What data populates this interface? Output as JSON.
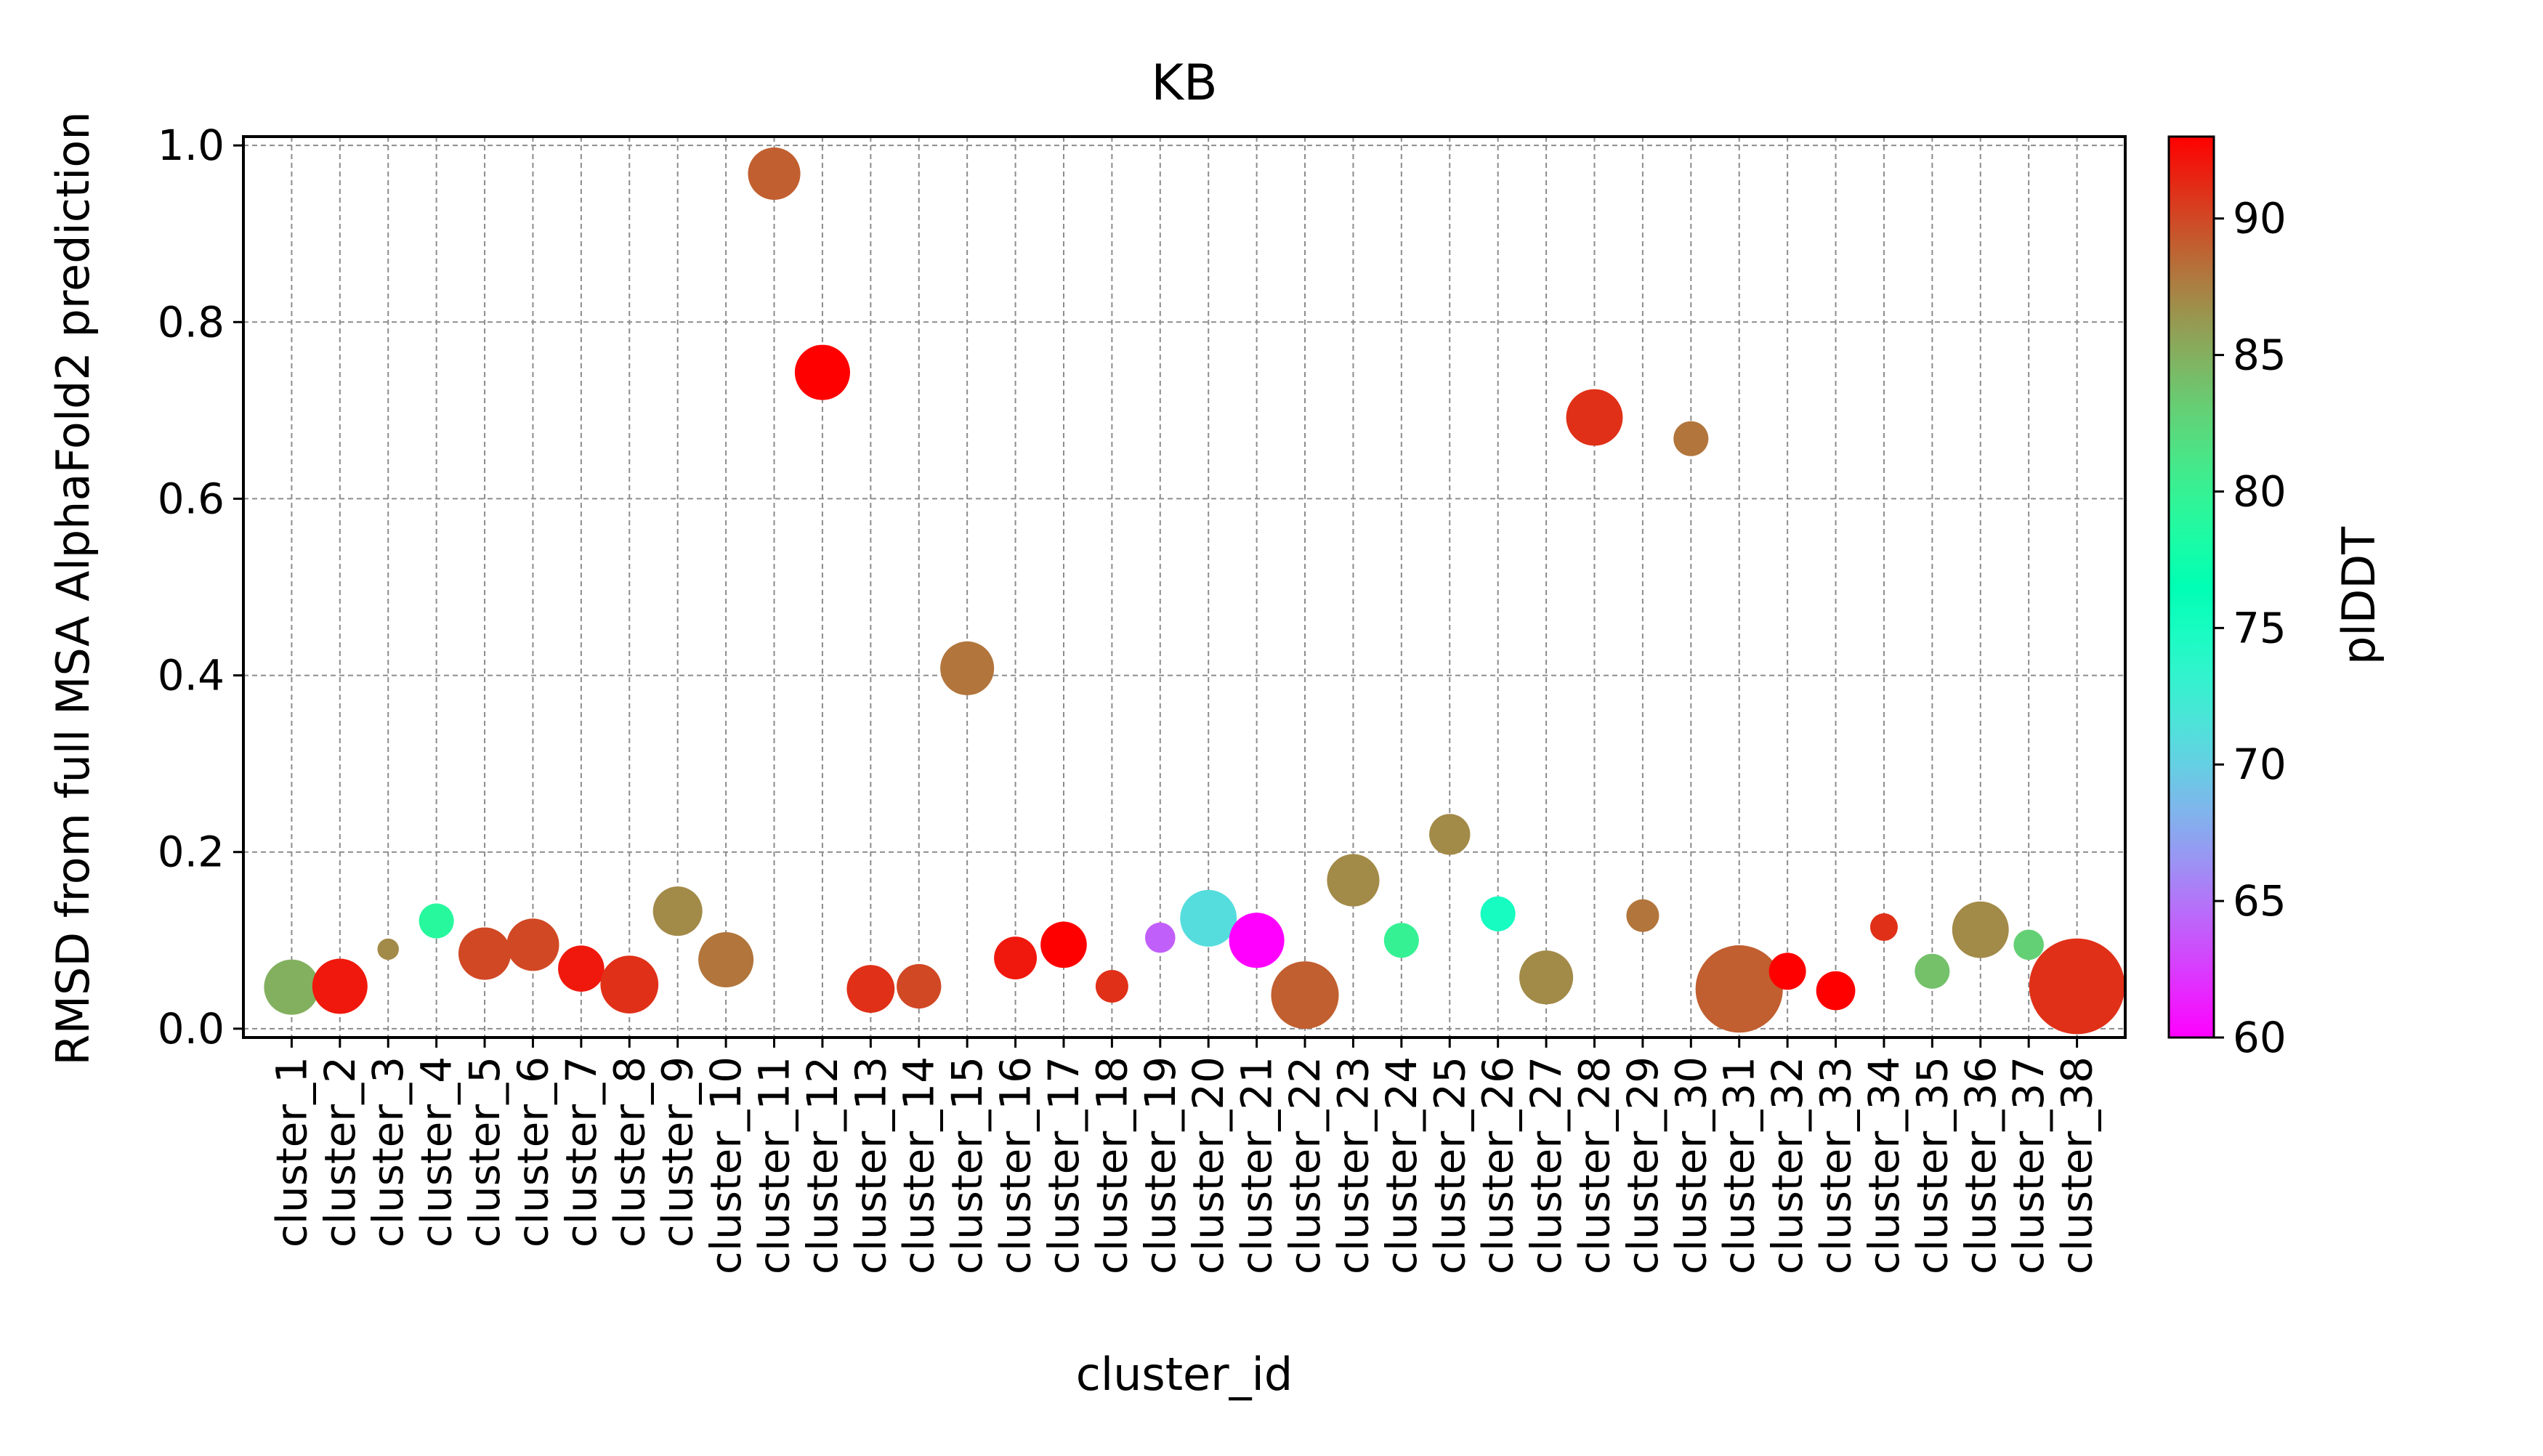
{
  "chart_data": {
    "type": "scatter",
    "title": "KB",
    "xlabel": "cluster_id",
    "ylabel": "RMSD from full MSA AlphaFold2 prediction",
    "colorbar_label": "plDDT",
    "colormap": "rainbow",
    "color_range": [
      60,
      93
    ],
    "colorbar_ticks": [
      "60",
      "65",
      "70",
      "75",
      "80",
      "85",
      "90"
    ],
    "ylim": [
      -0.01,
      1.01
    ],
    "yticks": [
      "0.0",
      "0.2",
      "0.4",
      "0.6",
      "0.8",
      "1.0"
    ],
    "grid": true,
    "categories": [
      "cluster_1",
      "cluster_2",
      "cluster_3",
      "cluster_4",
      "cluster_5",
      "cluster_6",
      "cluster_7",
      "cluster_8",
      "cluster_9",
      "cluster_10",
      "cluster_11",
      "cluster_12",
      "cluster_13",
      "cluster_14",
      "cluster_15",
      "cluster_16",
      "cluster_17",
      "cluster_18",
      "cluster_19",
      "cluster_20",
      "cluster_21",
      "cluster_22",
      "cluster_23",
      "cluster_24",
      "cluster_25",
      "cluster_26",
      "cluster_27",
      "cluster_28",
      "cluster_29",
      "cluster_30",
      "cluster_31",
      "cluster_32",
      "cluster_33",
      "cluster_34",
      "cluster_35",
      "cluster_36",
      "cluster_37",
      "cluster_38"
    ],
    "y": [
      0.047,
      0.048,
      0.09,
      0.122,
      0.085,
      0.095,
      0.068,
      0.05,
      0.133,
      0.078,
      0.968,
      0.743,
      0.045,
      0.048,
      0.408,
      0.08,
      0.095,
      0.048,
      0.103,
      0.125,
      0.1,
      0.038,
      0.168,
      0.1,
      0.22,
      0.13,
      0.058,
      0.692,
      0.128,
      0.668,
      0.045,
      0.065,
      0.043,
      0.115,
      0.065,
      0.112,
      0.095,
      0.048
    ],
    "plddt": [
      85,
      92,
      87,
      79,
      90,
      90,
      92,
      91,
      87,
      88,
      89,
      93,
      91,
      90,
      88,
      92,
      93,
      91,
      64,
      71,
      60,
      89,
      87,
      80,
      87,
      75,
      87,
      91,
      88,
      88,
      89,
      93,
      93,
      91,
      84,
      87,
      83,
      91
    ],
    "size": [
      20,
      20,
      3,
      8,
      18,
      18,
      14,
      22,
      16,
      20,
      18,
      20,
      15,
      13,
      19,
      12,
      14,
      7,
      6,
      21,
      20,
      30,
      18,
      8,
      11,
      8,
      19,
      21,
      7,
      8,
      50,
      9,
      10,
      5,
      8,
      21,
      6,
      60
    ]
  }
}
